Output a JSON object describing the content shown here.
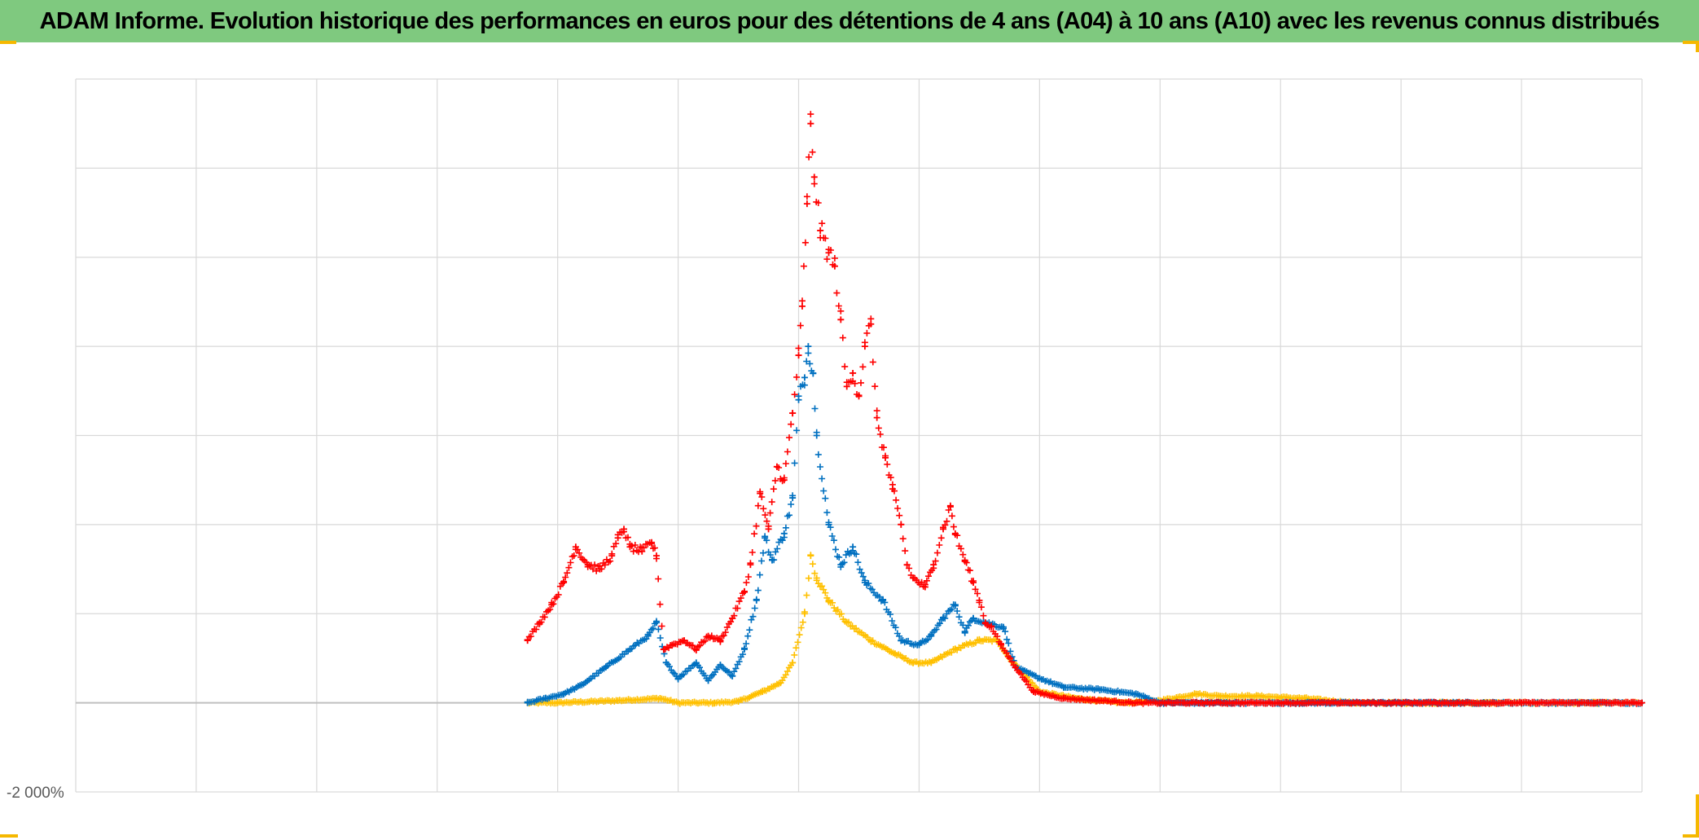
{
  "title": "ADAM Informe. Evolution historique des performances en euros pour des détentions de 4 ans (A04) à 10 ans (A10) avec les revenus connus distribués",
  "colors": {
    "title_bg": "#7fc97f",
    "corner_marks": "#f5b800",
    "grid": "#d9d9d9",
    "zero_line": "#bfbfbf"
  },
  "chart_data": {
    "type": "scatter",
    "marker": "plus",
    "title": "ADAM Informe. Evolution historique des performances en euros pour des détentions de 4 ans (A04) à 10 ans (A10) avec les revenus connus distribués",
    "y_tick_labels": [
      "-2 000%"
    ],
    "ylim": [
      -2000,
      14000
    ],
    "ygrid_step": 2000,
    "xlim": [
      0,
      13
    ],
    "xgrid_step": 1,
    "grid": true,
    "legend": "none",
    "series": [
      {
        "color": "#ffc000",
        "points": [
          [
            3.75,
            0
          ],
          [
            4,
            0
          ],
          [
            4.5,
            50
          ],
          [
            4.85,
            100
          ],
          [
            5,
            0
          ],
          [
            5.3,
            0
          ],
          [
            5.5,
            30
          ],
          [
            5.7,
            250
          ],
          [
            5.85,
            450
          ],
          [
            5.95,
            900
          ],
          [
            6.05,
            2000
          ],
          [
            6.1,
            3300
          ],
          [
            6.15,
            2800
          ],
          [
            6.25,
            2300
          ],
          [
            6.4,
            1800
          ],
          [
            6.6,
            1400
          ],
          [
            6.8,
            1100
          ],
          [
            6.95,
            900
          ],
          [
            7.1,
            900
          ],
          [
            7.3,
            1200
          ],
          [
            7.5,
            1400
          ],
          [
            7.65,
            1400
          ],
          [
            7.75,
            1000
          ],
          [
            7.85,
            700
          ],
          [
            8,
            250
          ],
          [
            8.3,
            100
          ],
          [
            8.7,
            0
          ],
          [
            9.0,
            50
          ],
          [
            9.3,
            200
          ],
          [
            9.5,
            150
          ],
          [
            9.8,
            150
          ],
          [
            10.2,
            100
          ],
          [
            10.6,
            0
          ],
          [
            11,
            0
          ],
          [
            11.5,
            0
          ],
          [
            12,
            0
          ],
          [
            12.6,
            0
          ],
          [
            13,
            0
          ]
        ]
      },
      {
        "color": "#0070c0",
        "points": [
          [
            3.75,
            0
          ],
          [
            3.9,
            100
          ],
          [
            4.05,
            200
          ],
          [
            4.2,
            400
          ],
          [
            4.4,
            800
          ],
          [
            4.6,
            1200
          ],
          [
            4.75,
            1500
          ],
          [
            4.82,
            1800
          ],
          [
            4.9,
            900
          ],
          [
            5,
            550
          ],
          [
            5.15,
            900
          ],
          [
            5.25,
            500
          ],
          [
            5.35,
            850
          ],
          [
            5.45,
            600
          ],
          [
            5.55,
            1200
          ],
          [
            5.65,
            2300
          ],
          [
            5.72,
            3700
          ],
          [
            5.78,
            3200
          ],
          [
            5.88,
            3800
          ],
          [
            5.95,
            4600
          ],
          [
            6.0,
            6800
          ],
          [
            6.05,
            7300
          ],
          [
            6.08,
            8000
          ],
          [
            6.12,
            7400
          ],
          [
            6.15,
            6000
          ],
          [
            6.25,
            4000
          ],
          [
            6.35,
            3100
          ],
          [
            6.45,
            3500
          ],
          [
            6.55,
            2700
          ],
          [
            6.7,
            2300
          ],
          [
            6.85,
            1400
          ],
          [
            7,
            1300
          ],
          [
            7.1,
            1500
          ],
          [
            7.2,
            1900
          ],
          [
            7.3,
            2200
          ],
          [
            7.38,
            1600
          ],
          [
            7.45,
            1900
          ],
          [
            7.55,
            1800
          ],
          [
            7.7,
            1700
          ],
          [
            7.8,
            800
          ],
          [
            8,
            550
          ],
          [
            8.2,
            350
          ],
          [
            8.5,
            300
          ],
          [
            8.8,
            200
          ],
          [
            9,
            0
          ],
          [
            9.3,
            0
          ],
          [
            9.8,
            0
          ],
          [
            10.3,
            0
          ],
          [
            11,
            0
          ],
          [
            12,
            0
          ],
          [
            13,
            0
          ]
        ]
      },
      {
        "color": "#ff0000",
        "points": [
          [
            3.75,
            1400
          ],
          [
            3.85,
            1800
          ],
          [
            3.95,
            2200
          ],
          [
            4.05,
            2700
          ],
          [
            4.15,
            3500
          ],
          [
            4.25,
            3100
          ],
          [
            4.35,
            3000
          ],
          [
            4.45,
            3300
          ],
          [
            4.5,
            3700
          ],
          [
            4.55,
            3900
          ],
          [
            4.6,
            3500
          ],
          [
            4.7,
            3400
          ],
          [
            4.78,
            3600
          ],
          [
            4.82,
            3300
          ],
          [
            4.88,
            1200
          ],
          [
            4.95,
            1300
          ],
          [
            5.05,
            1400
          ],
          [
            5.15,
            1200
          ],
          [
            5.25,
            1500
          ],
          [
            5.35,
            1400
          ],
          [
            5.45,
            1900
          ],
          [
            5.55,
            2500
          ],
          [
            5.6,
            3100
          ],
          [
            5.68,
            4700
          ],
          [
            5.75,
            3900
          ],
          [
            5.82,
            5300
          ],
          [
            5.88,
            5000
          ],
          [
            5.95,
            6500
          ],
          [
            6.0,
            7800
          ],
          [
            6.03,
            8900
          ],
          [
            6.07,
            11200
          ],
          [
            6.1,
            13000
          ],
          [
            6.13,
            11800
          ],
          [
            6.18,
            10600
          ],
          [
            6.25,
            10100
          ],
          [
            6.3,
            9800
          ],
          [
            6.35,
            8600
          ],
          [
            6.4,
            7100
          ],
          [
            6.45,
            7400
          ],
          [
            6.5,
            6900
          ],
          [
            6.55,
            8000
          ],
          [
            6.6,
            8500
          ],
          [
            6.65,
            6400
          ],
          [
            6.72,
            5500
          ],
          [
            6.78,
            4800
          ],
          [
            6.85,
            4000
          ],
          [
            6.9,
            3100
          ],
          [
            6.95,
            2800
          ],
          [
            7.05,
            2600
          ],
          [
            7.12,
            3100
          ],
          [
            7.2,
            3900
          ],
          [
            7.26,
            4400
          ],
          [
            7.3,
            3800
          ],
          [
            7.38,
            3200
          ],
          [
            7.45,
            2700
          ],
          [
            7.5,
            2300
          ],
          [
            7.55,
            1800
          ],
          [
            7.6,
            1700
          ],
          [
            7.68,
            1300
          ],
          [
            7.8,
            800
          ],
          [
            7.95,
            250
          ],
          [
            8.2,
            100
          ],
          [
            8.5,
            50
          ],
          [
            8.8,
            0
          ],
          [
            9.2,
            0
          ],
          [
            9.8,
            0
          ],
          [
            10.5,
            0
          ],
          [
            11.2,
            0
          ],
          [
            12,
            0
          ],
          [
            12.6,
            0
          ],
          [
            13,
            0
          ]
        ]
      }
    ]
  }
}
